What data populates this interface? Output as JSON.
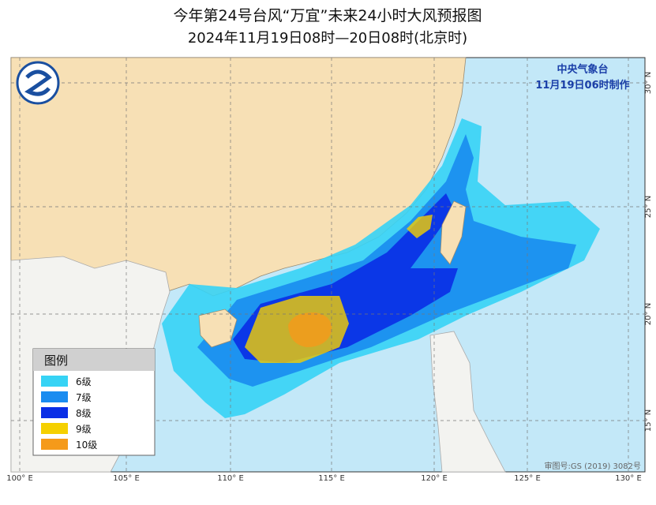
{
  "header": {
    "title": "今年第24号台风“万宜”未来24小时大风预报图",
    "subtitle": "2024年11月19日08时—20日08时(北京时)"
  },
  "issuer": {
    "agency": "中央气象台",
    "issued": "11月19日06时制作"
  },
  "legend": {
    "title": "图例",
    "items": [
      {
        "label": "6级",
        "color": "#36d3f5"
      },
      {
        "label": "7级",
        "color": "#1a8cf0"
      },
      {
        "label": "8级",
        "color": "#0a2ee6"
      },
      {
        "label": "9级",
        "color": "#f5d000"
      },
      {
        "label": "10级",
        "color": "#f59a1a"
      }
    ]
  },
  "longitude_labels": [
    "100° E",
    "105° E",
    "110° E",
    "115° E",
    "120° E",
    "125° E",
    "130° E"
  ],
  "latitude_labels": [
    "30° N",
    "25° N",
    "20° N",
    "15° N"
  ],
  "credit": "审图号:GS (2019) 3082号"
}
